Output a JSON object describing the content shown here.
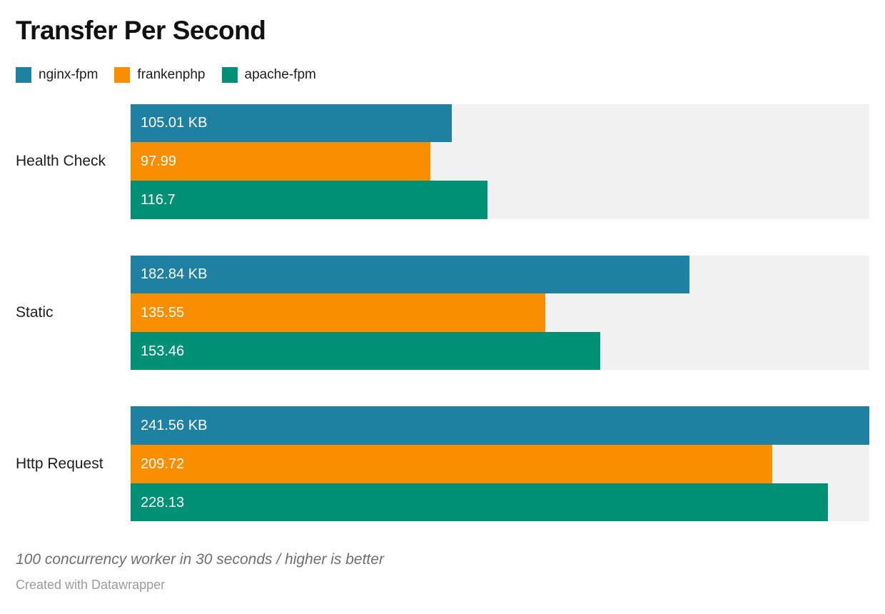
{
  "title": "Transfer Per Second",
  "legend": [
    {
      "label": "nginx-fpm",
      "color": "#1e81a1"
    },
    {
      "label": "frankenphp",
      "color": "#f98e00"
    },
    {
      "label": "apache-fpm",
      "color": "#009076"
    }
  ],
  "footer": {
    "note": "100 concurrency worker in 30 seconds / higher is better",
    "byline": "Created with Datawrapper"
  },
  "chart_data": {
    "type": "bar",
    "orientation": "horizontal",
    "title": "Transfer Per Second",
    "categories": [
      "Health Check",
      "Static",
      "Http Request"
    ],
    "series": [
      {
        "name": "nginx-fpm",
        "color": "#1e81a1",
        "values": [
          105.01,
          182.84,
          241.56
        ]
      },
      {
        "name": "frankenphp",
        "color": "#f98e00",
        "values": [
          97.99,
          135.55,
          209.72
        ]
      },
      {
        "name": "apache-fpm",
        "color": "#009076",
        "values": [
          116.7,
          153.46,
          228.13
        ]
      }
    ],
    "bar_labels": [
      [
        "105.01 KB",
        "97.99",
        "116.7"
      ],
      [
        "182.84 KB",
        "135.55",
        "153.46"
      ],
      [
        "241.56 KB",
        "209.72",
        "228.13"
      ]
    ],
    "unit": "KB",
    "xlim": [
      0,
      241.56
    ],
    "grid": false,
    "legend_position": "top",
    "track_color": "#f1f1f1",
    "value_label_position": "inside-left"
  }
}
